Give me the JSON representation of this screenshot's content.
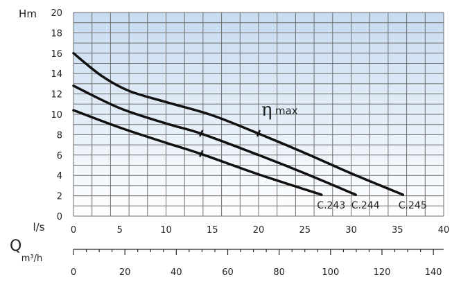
{
  "chart_data": {
    "type": "line",
    "ylabel": "Hm",
    "xlabel_primary_unit": "l/s",
    "xlabel_secondary_unit": "m³/h",
    "xlabel_letter": "Q",
    "xlim": [
      0,
      40
    ],
    "ylim": [
      0,
      20
    ],
    "x2lim": [
      0,
      144
    ],
    "x_ticks": [
      "0",
      "5",
      "10",
      "15",
      "20",
      "25",
      "30",
      "35",
      "40"
    ],
    "y_ticks": [
      "0",
      "2",
      "4",
      "6",
      "8",
      "10",
      "12",
      "14",
      "16",
      "18",
      "20"
    ],
    "x2_ticks": [
      "0",
      "20",
      "40",
      "60",
      "80",
      "100",
      "120",
      "140"
    ],
    "grid": true,
    "efficiency_label": {
      "symbol": "η",
      "text": "max"
    },
    "series": [
      {
        "name": "C.243",
        "x": [
          0,
          5,
          10,
          13.8,
          20,
          26.8
        ],
        "y": [
          10.4,
          8.7,
          7.2,
          6.1,
          4.1,
          2.1
        ],
        "eta_max_at": 13.8
      },
      {
        "name": "C.244",
        "x": [
          0,
          5,
          10,
          13.8,
          20,
          25,
          30.5
        ],
        "y": [
          12.8,
          10.6,
          9.1,
          8.1,
          6.0,
          4.2,
          2.1
        ],
        "eta_max_at": 13.8
      },
      {
        "name": "C.245",
        "x": [
          0,
          3,
          6,
          10,
          15,
          20,
          25,
          30,
          35.6
        ],
        "y": [
          16.0,
          13.8,
          12.3,
          11.2,
          9.9,
          8.1,
          6.2,
          4.2,
          2.1
        ],
        "eta_max_at": 20
      }
    ]
  }
}
